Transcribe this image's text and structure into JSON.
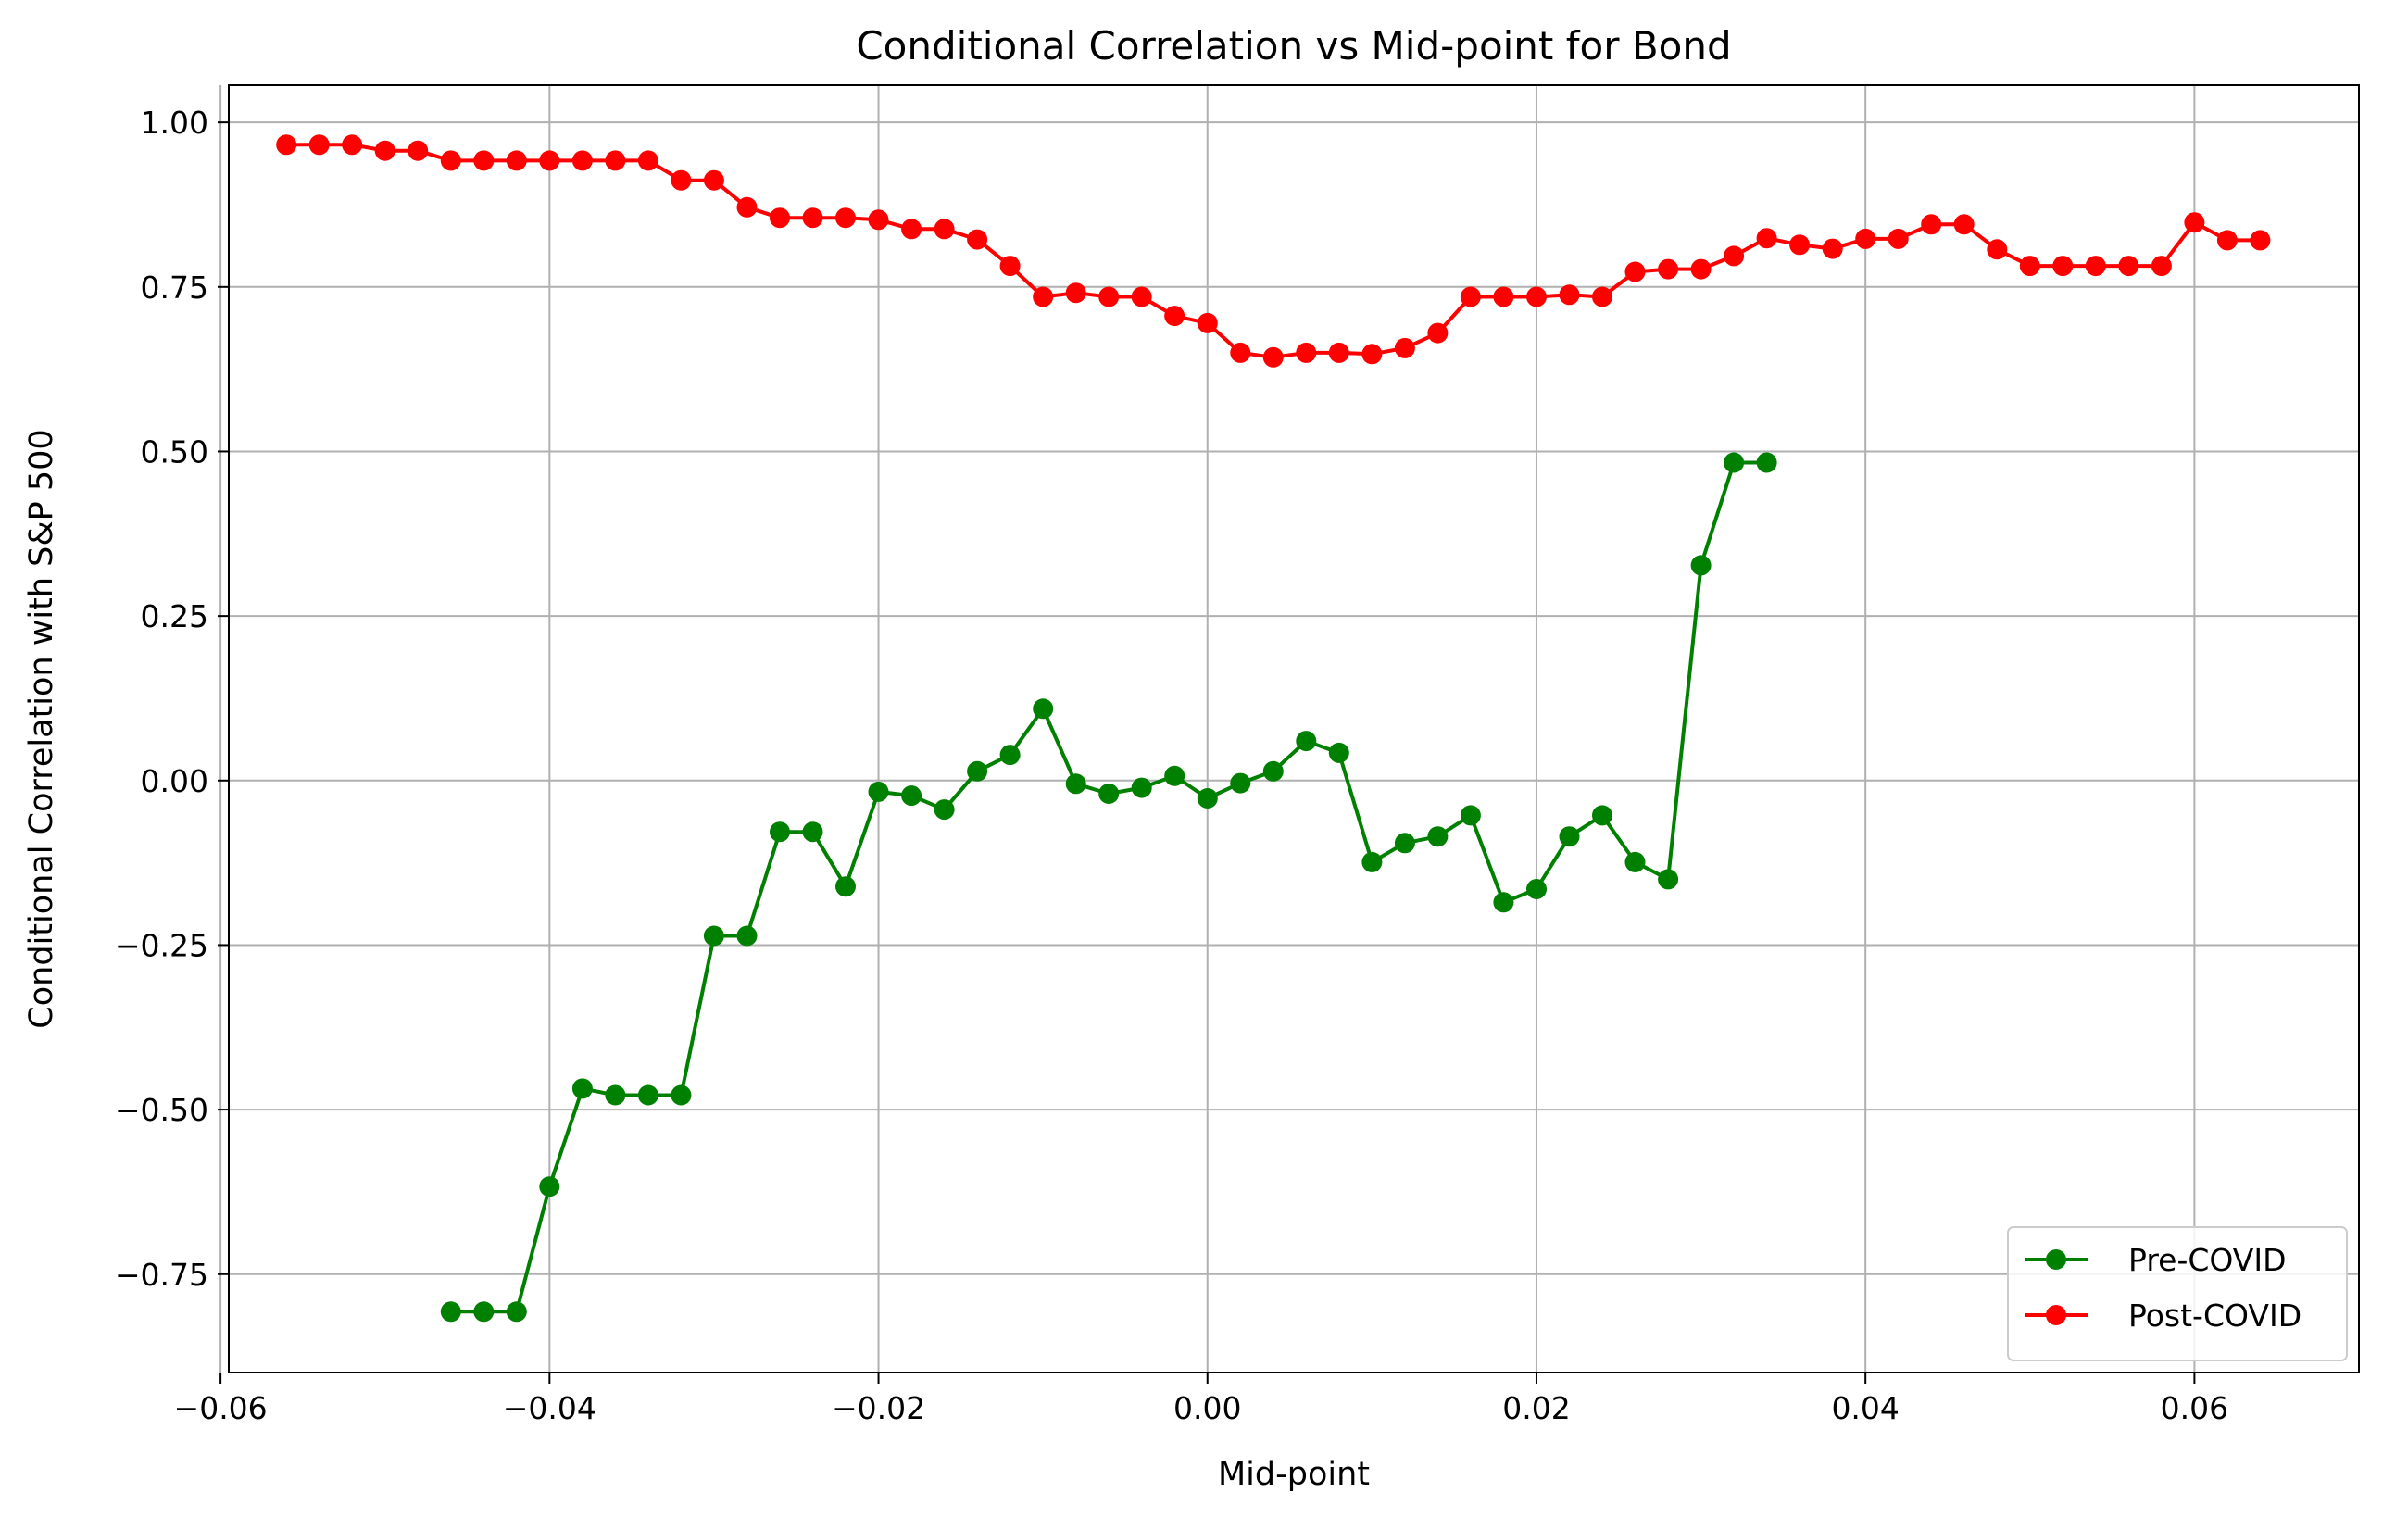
{
  "chart_data": {
    "type": "line",
    "title": "Conditional Correlation vs Mid-point for Bond",
    "xlabel": "Mid-point",
    "ylabel": "Conditional Correlation with S&P 500",
    "xlim": [
      -0.0595,
      0.07
    ],
    "ylim": [
      -0.8995,
      1.0565
    ],
    "x_ticks": [
      -0.06,
      -0.04,
      -0.02,
      0.0,
      0.02,
      0.04,
      0.06
    ],
    "x_tick_labels": [
      "−0.06",
      "−0.04",
      "−0.02",
      "0.00",
      "0.02",
      "0.04",
      "0.06"
    ],
    "y_ticks": [
      -0.75,
      -0.5,
      -0.25,
      0.0,
      0.25,
      0.5,
      0.75,
      1.0
    ],
    "y_tick_labels": [
      "−0.75",
      "−0.50",
      "−0.25",
      "0.00",
      "0.25",
      "0.50",
      "0.75",
      "1.00"
    ],
    "grid": true,
    "legend_position": "lower-right",
    "series": [
      {
        "name": "Pre-COVID",
        "color": "#008000",
        "marker": "circle",
        "x": [
          -0.046,
          -0.044,
          -0.042,
          -0.04,
          -0.038,
          -0.036,
          -0.034,
          -0.032,
          -0.03,
          -0.028,
          -0.026,
          -0.024,
          -0.022,
          -0.02,
          -0.018,
          -0.016,
          -0.014,
          -0.012,
          -0.01,
          -0.008,
          -0.006,
          -0.004,
          -0.002,
          0.0,
          0.002,
          0.004,
          0.006,
          0.008,
          0.01,
          0.012,
          0.014,
          0.016,
          0.018,
          0.02,
          0.022,
          0.024,
          0.026,
          0.028,
          0.03,
          0.032,
          0.034
        ],
        "y": [
          -0.807,
          -0.807,
          -0.807,
          -0.617,
          -0.468,
          -0.478,
          -0.478,
          -0.478,
          -0.236,
          -0.236,
          -0.078,
          -0.078,
          -0.161,
          -0.017,
          -0.023,
          -0.044,
          0.014,
          0.039,
          0.109,
          -0.005,
          -0.02,
          -0.011,
          0.007,
          -0.027,
          -0.004,
          0.014,
          0.06,
          0.042,
          -0.124,
          -0.095,
          -0.085,
          -0.053,
          -0.185,
          -0.165,
          -0.085,
          -0.053,
          -0.124,
          -0.15,
          0.327,
          0.483,
          0.483
        ]
      },
      {
        "name": "Post-COVID",
        "color": "#ff0000",
        "marker": "circle",
        "x": [
          -0.056,
          -0.054,
          -0.052,
          -0.05,
          -0.048,
          -0.046,
          -0.044,
          -0.042,
          -0.04,
          -0.038,
          -0.036,
          -0.034,
          -0.032,
          -0.03,
          -0.028,
          -0.026,
          -0.024,
          -0.022,
          -0.02,
          -0.018,
          -0.016,
          -0.014,
          -0.012,
          -0.01,
          -0.008,
          -0.006,
          -0.004,
          -0.002,
          0.0,
          0.002,
          0.004,
          0.006,
          0.008,
          0.01,
          0.012,
          0.014,
          0.016,
          0.018,
          0.02,
          0.022,
          0.024,
          0.026,
          0.028,
          0.03,
          0.032,
          0.034,
          0.036,
          0.038,
          0.04,
          0.042,
          0.044,
          0.046,
          0.048,
          0.05,
          0.052,
          0.054,
          0.056,
          0.058,
          0.06,
          0.062,
          0.064
        ],
        "y": [
          0.966,
          0.966,
          0.966,
          0.957,
          0.957,
          0.942,
          0.942,
          0.942,
          0.942,
          0.942,
          0.942,
          0.942,
          0.912,
          0.912,
          0.871,
          0.855,
          0.855,
          0.855,
          0.852,
          0.838,
          0.838,
          0.822,
          0.782,
          0.735,
          0.741,
          0.735,
          0.735,
          0.706,
          0.695,
          0.65,
          0.643,
          0.65,
          0.65,
          0.648,
          0.657,
          0.68,
          0.735,
          0.735,
          0.735,
          0.738,
          0.735,
          0.773,
          0.777,
          0.777,
          0.797,
          0.824,
          0.814,
          0.808,
          0.823,
          0.823,
          0.845,
          0.845,
          0.807,
          0.782,
          0.782,
          0.782,
          0.782,
          0.782,
          0.848,
          0.821,
          0.821
        ]
      }
    ]
  }
}
